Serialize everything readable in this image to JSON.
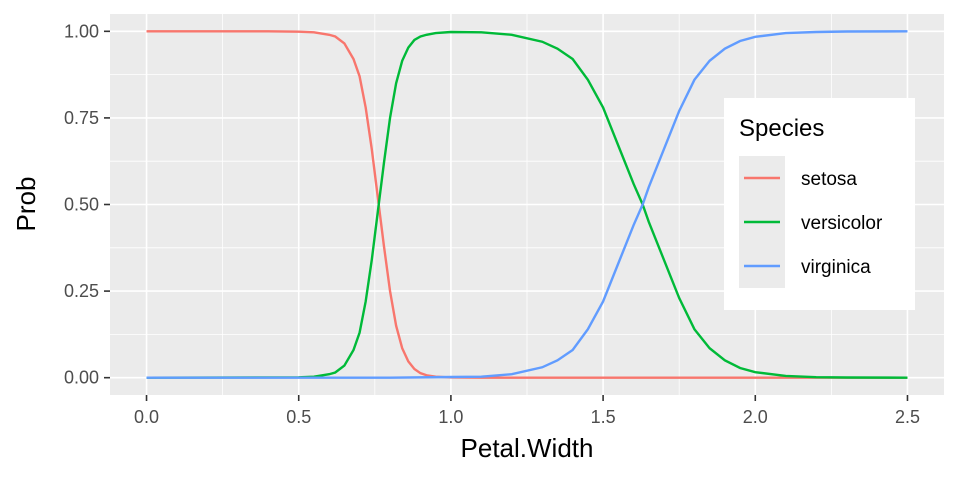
{
  "chart_data": {
    "type": "line",
    "title": "",
    "xlabel": "Petal.Width",
    "ylabel": "Prob",
    "xlim": [
      -0.12,
      2.62
    ],
    "ylim": [
      -0.05,
      1.05
    ],
    "grid": true,
    "x_ticks": [
      0.0,
      0.5,
      1.0,
      1.5,
      2.0,
      2.5
    ],
    "x_tick_labels": [
      "0.0",
      "0.5",
      "1.0",
      "1.5",
      "2.0",
      "2.5"
    ],
    "y_ticks": [
      0.0,
      0.25,
      0.5,
      0.75,
      1.0
    ],
    "y_tick_labels": [
      "0.00",
      "0.25",
      "0.50",
      "0.75",
      "1.00"
    ],
    "legend": {
      "title": "Species",
      "placement": "right"
    },
    "series": [
      {
        "name": "setosa",
        "color": "#F8766D",
        "x": [
          0.0,
          0.1,
          0.2,
          0.3,
          0.4,
          0.5,
          0.55,
          0.6,
          0.62,
          0.65,
          0.68,
          0.7,
          0.72,
          0.74,
          0.76,
          0.78,
          0.8,
          0.82,
          0.84,
          0.86,
          0.88,
          0.9,
          0.92,
          0.95,
          1.0,
          1.1,
          1.2,
          1.5,
          2.0,
          2.5
        ],
        "values": [
          1.0,
          1.0,
          1.0,
          1.0,
          1.0,
          0.999,
          0.997,
          0.99,
          0.985,
          0.965,
          0.92,
          0.87,
          0.78,
          0.66,
          0.52,
          0.38,
          0.25,
          0.15,
          0.085,
          0.047,
          0.025,
          0.013,
          0.007,
          0.003,
          0.0007,
          0.0,
          0.0,
          0.0,
          0.0,
          0.0
        ]
      },
      {
        "name": "versicolor",
        "color": "#00BA38",
        "x": [
          0.0,
          0.5,
          0.55,
          0.6,
          0.62,
          0.65,
          0.68,
          0.7,
          0.72,
          0.74,
          0.76,
          0.78,
          0.8,
          0.82,
          0.84,
          0.86,
          0.88,
          0.9,
          0.92,
          0.95,
          1.0,
          1.1,
          1.2,
          1.3,
          1.35,
          1.4,
          1.45,
          1.5,
          1.55,
          1.6,
          1.63,
          1.65,
          1.7,
          1.75,
          1.8,
          1.85,
          1.9,
          1.95,
          2.0,
          2.1,
          2.2,
          2.3,
          2.5
        ],
        "values": [
          0.0,
          0.001,
          0.003,
          0.01,
          0.015,
          0.035,
          0.08,
          0.13,
          0.22,
          0.34,
          0.48,
          0.62,
          0.75,
          0.85,
          0.915,
          0.953,
          0.975,
          0.985,
          0.99,
          0.995,
          0.998,
          0.997,
          0.99,
          0.97,
          0.95,
          0.92,
          0.86,
          0.78,
          0.67,
          0.56,
          0.5,
          0.45,
          0.34,
          0.23,
          0.14,
          0.085,
          0.05,
          0.028,
          0.016,
          0.005,
          0.0015,
          0.0005,
          0.0
        ]
      },
      {
        "name": "virginica",
        "color": "#619CFF",
        "x": [
          0.0,
          0.5,
          0.8,
          1.0,
          1.1,
          1.2,
          1.3,
          1.35,
          1.4,
          1.45,
          1.5,
          1.55,
          1.6,
          1.63,
          1.65,
          1.7,
          1.75,
          1.8,
          1.85,
          1.9,
          1.95,
          2.0,
          2.1,
          2.2,
          2.3,
          2.5
        ],
        "values": [
          0.0,
          0.0,
          0.0,
          0.002,
          0.003,
          0.01,
          0.03,
          0.05,
          0.08,
          0.14,
          0.22,
          0.33,
          0.44,
          0.5,
          0.55,
          0.66,
          0.77,
          0.86,
          0.915,
          0.95,
          0.972,
          0.984,
          0.995,
          0.998,
          0.9995,
          1.0
        ]
      }
    ]
  }
}
